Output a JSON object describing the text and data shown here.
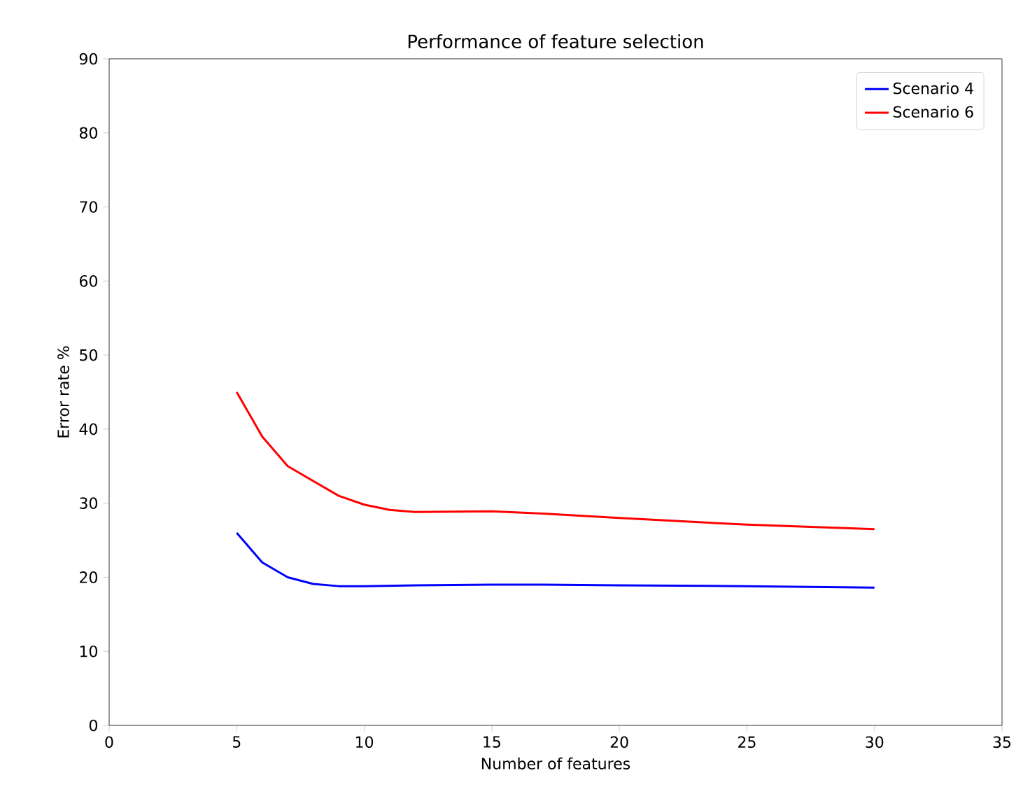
{
  "chart_data": {
    "type": "line",
    "title": "Performance of feature selection",
    "xlabel": "Number of features",
    "ylabel": "Error rate %",
    "xlim": [
      0,
      35
    ],
    "xticks": [
      0,
      5,
      10,
      15,
      20,
      25,
      30,
      35
    ],
    "ylim": [
      0,
      90
    ],
    "yticks": [
      0,
      10,
      20,
      30,
      40,
      50,
      60,
      70,
      80,
      90
    ],
    "legend": "top right",
    "series": [
      {
        "name": "Scenario 4",
        "color": "#0000ff",
        "x": [
          5,
          6,
          7,
          8,
          9,
          10,
          12,
          15,
          17,
          20,
          25,
          30
        ],
        "values": [
          26,
          22,
          20,
          19.1,
          18.8,
          18.8,
          18.9,
          19,
          19,
          18.9,
          18.8,
          18.6
        ]
      },
      {
        "name": "Scenario 6",
        "color": "#ff0000",
        "x": [
          5,
          6,
          7,
          8,
          9,
          10,
          11,
          12,
          15,
          17,
          20,
          25,
          30
        ],
        "values": [
          45,
          39,
          35,
          33,
          31,
          29.8,
          29.1,
          28.8,
          28.9,
          28.6,
          28,
          27.1,
          26.5
        ]
      }
    ]
  }
}
